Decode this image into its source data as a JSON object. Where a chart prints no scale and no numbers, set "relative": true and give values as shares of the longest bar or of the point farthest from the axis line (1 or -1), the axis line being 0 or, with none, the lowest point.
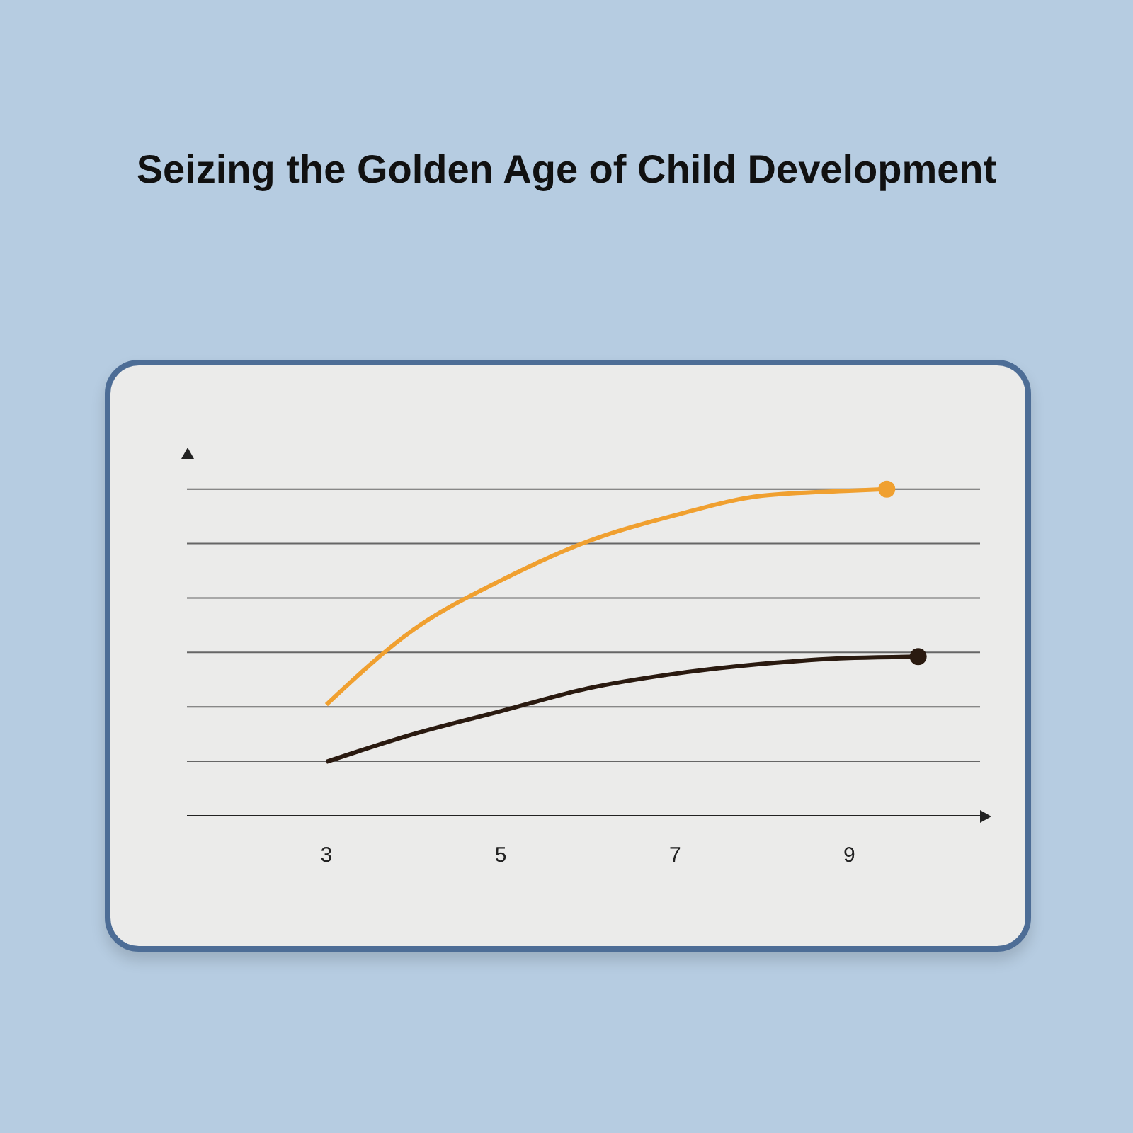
{
  "chart_data": {
    "type": "line",
    "title": "Seizing the Golden Age of Child Development",
    "relative": true,
    "xlim": [
      1.4,
      10.5
    ],
    "xticks": [
      3,
      5,
      7,
      9
    ],
    "grid": "y",
    "line_style": "solid",
    "series": [
      {
        "color": "#f0a030",
        "x": [
          3,
          4,
          5,
          6,
          7,
          8,
          9,
          9.43
        ],
        "values": [
          0.34,
          0.57,
          0.72,
          0.84,
          0.92,
          0.98,
          0.995,
          1
        ]
      },
      {
        "color": "#2a1a10",
        "x": [
          3,
          4,
          5,
          6,
          7,
          8,
          9,
          9.79
        ],
        "values": [
          0.165,
          0.25,
          0.32,
          0.39,
          0.435,
          0.465,
          0.483,
          0.487
        ]
      }
    ]
  }
}
